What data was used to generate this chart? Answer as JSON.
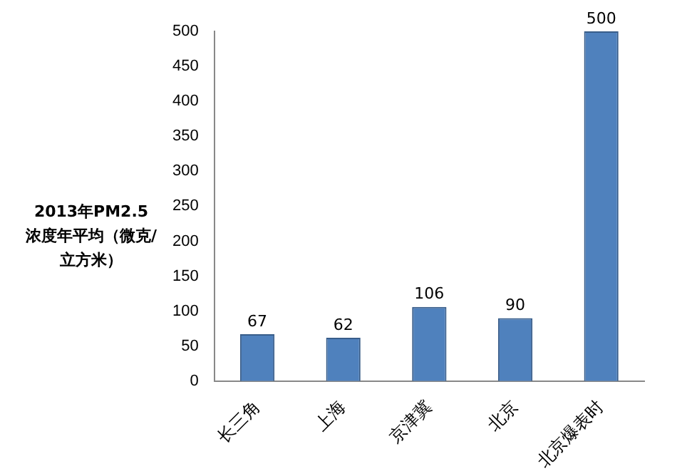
{
  "chart_data": {
    "type": "bar",
    "ylabel": "2013年PM2.5\n浓度年平均（微克/立方米）",
    "categories": [
      "长三角",
      "上海",
      "京津冀",
      "北京",
      "北京爆表时"
    ],
    "values": [
      67,
      62,
      106,
      90,
      500
    ],
    "color": "#4f81bd",
    "ylim": [
      0,
      500
    ],
    "yticks": [
      0,
      50,
      100,
      150,
      200,
      250,
      300,
      350,
      400,
      450,
      500
    ],
    "grid": false,
    "legend": false,
    "data_labels": true
  }
}
